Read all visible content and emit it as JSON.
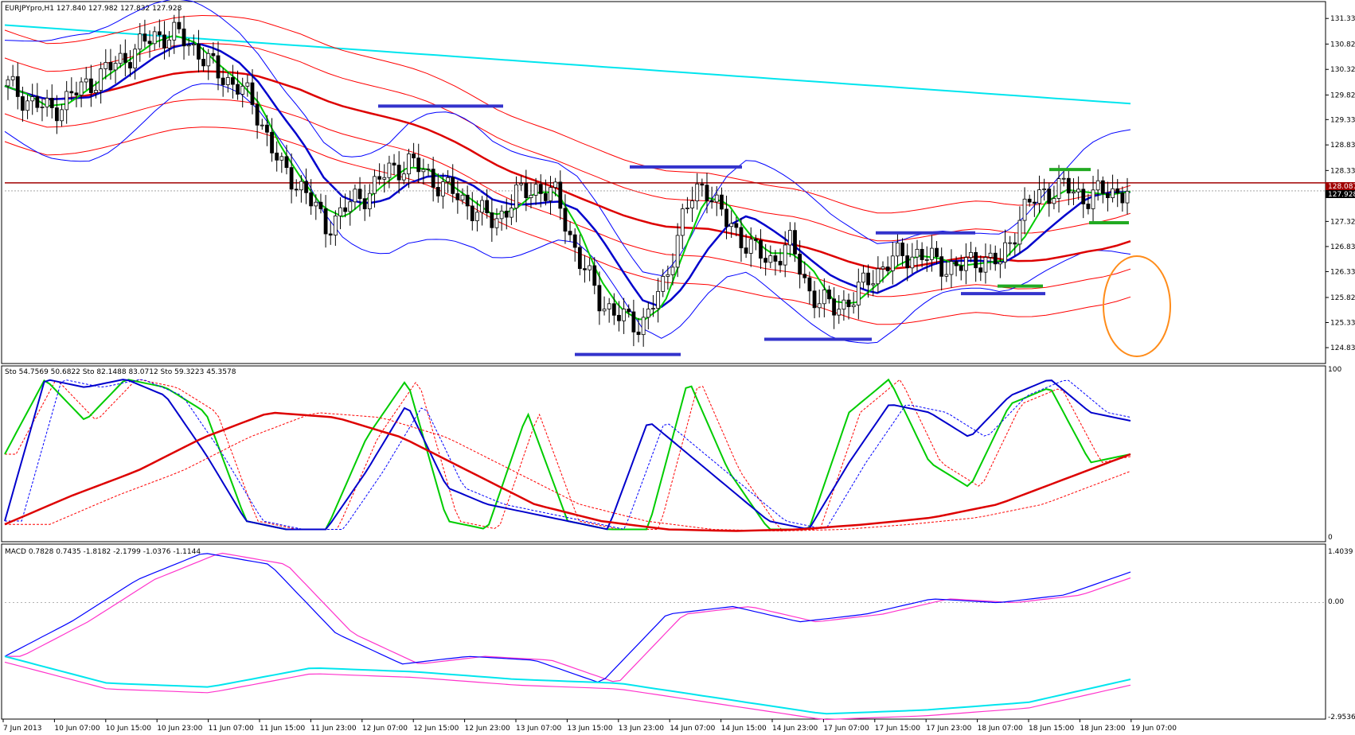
{
  "symbol_header": "EURJPYpro,H1  127.840 127.982 127.832 127.928",
  "stoch_header": "Sto 54.7569 50.6822  Sto 82.1488 83.0712  Sto 59.3223 45.3578",
  "macd_header": "MACD 0.7828 0.7435 -1.8182 -2.1799 -1.0376 -1.1144",
  "price_axis_labels": [
    "131.330",
    "130.825",
    "130.325",
    "129.820",
    "129.335",
    "128.835",
    "128.330",
    "127.835",
    "127.325",
    "126.830",
    "126.335",
    "125.825",
    "125.330",
    "124.835"
  ],
  "price_tags": {
    "resistance": "128.087",
    "last": "127.928"
  },
  "stoch_axis_labels": {
    "top": "100",
    "bottom": "0"
  },
  "macd_axis_labels": {
    "top": "1.4039",
    "zero": "0.00",
    "bottom": "-2.9536"
  },
  "time_labels": [
    "7 Jun 2013",
    "10 Jun 07:00",
    "10 Jun 15:00",
    "10 Jun 23:00",
    "11 Jun 07:00",
    "11 Jun 15:00",
    "11 Jun 23:00",
    "12 Jun 07:00",
    "12 Jun 15:00",
    "12 Jun 23:00",
    "13 Jun 07:00",
    "13 Jun 15:00",
    "13 Jun 23:00",
    "14 Jun 07:00",
    "14 Jun 15:00",
    "14 Jun 23:00",
    "17 Jun 07:00",
    "17 Jun 15:00",
    "17 Jun 23:00",
    "18 Jun 07:00",
    "18 Jun 15:00",
    "18 Jun 23:00",
    "19 Jun 07:00"
  ],
  "colors": {
    "bollinger": "#0000ff",
    "envelope": "#ff0000",
    "fast_ma": "#00cc00",
    "mid_ma": "#0000cc",
    "slow_ma": "#dd0000",
    "long_ma": "#00e5ee",
    "resistance_line": "#a00000",
    "marker_blue": "#3333cc",
    "marker_green": "#22aa22",
    "circle": "#ff8c1a",
    "macd_magenta": "#ff33cc"
  },
  "chart_data": {
    "type": "candlestick",
    "symbol": "EURJPYpro",
    "timeframe": "H1",
    "y_range": [
      124.6,
      131.6
    ],
    "resistance": 128.087,
    "last_price": 127.928,
    "close_path": [
      130.0,
      129.7,
      129.5,
      129.8,
      130.1,
      130.4,
      130.7,
      131.0,
      131.0,
      130.7,
      130.2,
      130.0,
      129.3,
      128.3,
      128.0,
      127.2,
      127.6,
      127.9,
      128.3,
      128.5,
      128.2,
      127.9,
      127.6,
      127.3,
      127.8,
      128.0,
      127.8,
      126.6,
      125.8,
      125.4,
      125.3,
      126.0,
      127.5,
      128.1,
      127.3,
      126.9,
      126.5,
      126.9,
      125.9,
      125.6,
      125.8,
      126.3,
      126.6,
      126.7,
      126.5,
      126.4,
      126.6,
      126.5,
      127.5,
      127.9,
      128.0,
      127.8,
      127.9,
      127.93
    ]
  }
}
